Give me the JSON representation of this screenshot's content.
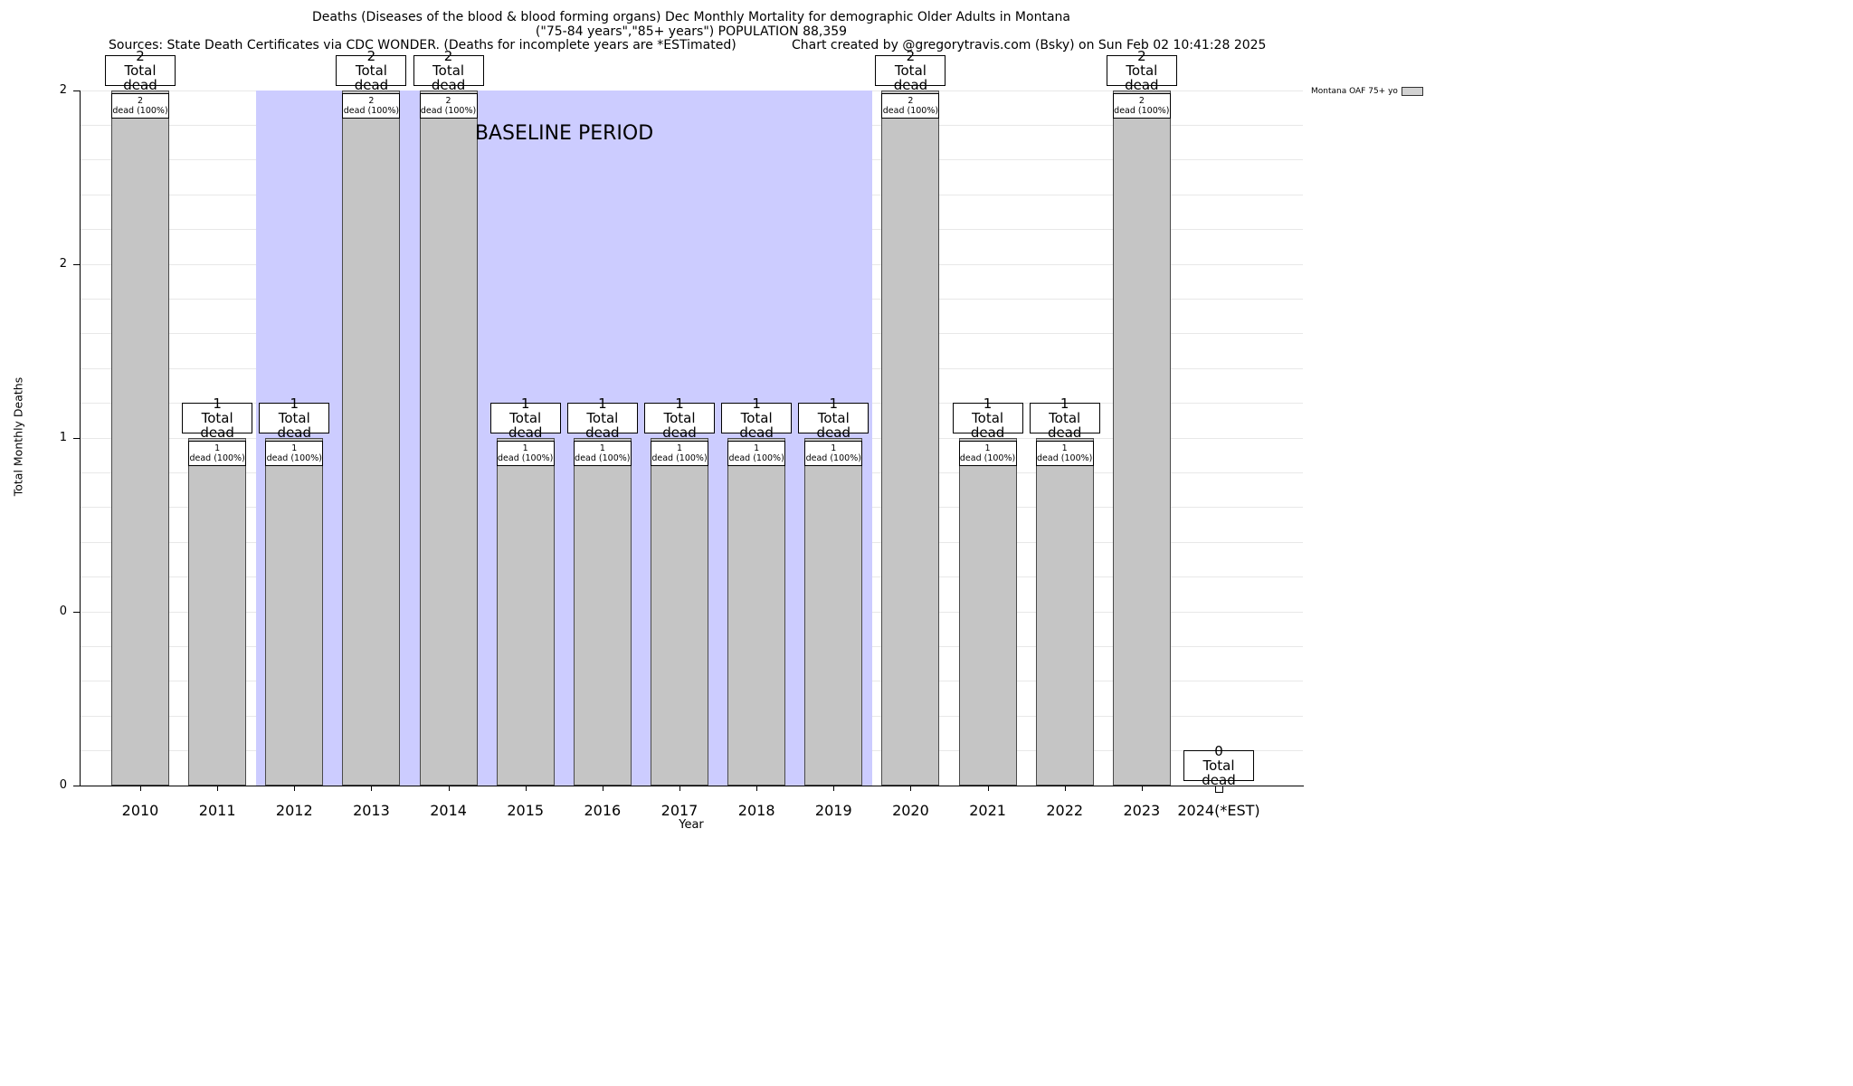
{
  "header": {
    "sources": "Sources: State Death Certificates via CDC WONDER. (Deaths for incomplete years are *ESTimated)",
    "credit": "Chart created by @gregorytravis.com (Bsky) on Sun Feb 02 10:41:28 2025"
  },
  "chart_data": {
    "type": "bar",
    "title": "Deaths (Diseases of the blood & blood forming organs) Dec Monthly Mortality for demographic Older Adults in Montana",
    "subtitle": "(\"75-84 years\",\"85+ years\") POPULATION 88,359",
    "xlabel": "Year",
    "ylabel": "Total Monthly Deaths",
    "ylim": [
      0,
      2
    ],
    "grid": true,
    "legend": {
      "label": "Montana OAF 75+ yo",
      "position": "top-right"
    },
    "bar_color": "#c5c5c5",
    "baseline": {
      "label": "BASELINE PERIOD",
      "from": "2012",
      "to": "2019",
      "color": "#ccccff"
    },
    "categories": [
      "2010",
      "2011",
      "2012",
      "2013",
      "2014",
      "2015",
      "2016",
      "2017",
      "2018",
      "2019",
      "2020",
      "2021",
      "2022",
      "2023",
      "2024(*EST)"
    ],
    "values": [
      2,
      1,
      1,
      2,
      2,
      1,
      1,
      1,
      1,
      1,
      2,
      1,
      1,
      2,
      0
    ],
    "ytick_positions": [
      0,
      0.5,
      1,
      1.5,
      2
    ],
    "ytick_labels": [
      "0",
      "0",
      "1",
      "2",
      "2"
    ],
    "annotations": {
      "total_suffix": "Total dead",
      "pct_suffix": "dead (100%)"
    }
  }
}
